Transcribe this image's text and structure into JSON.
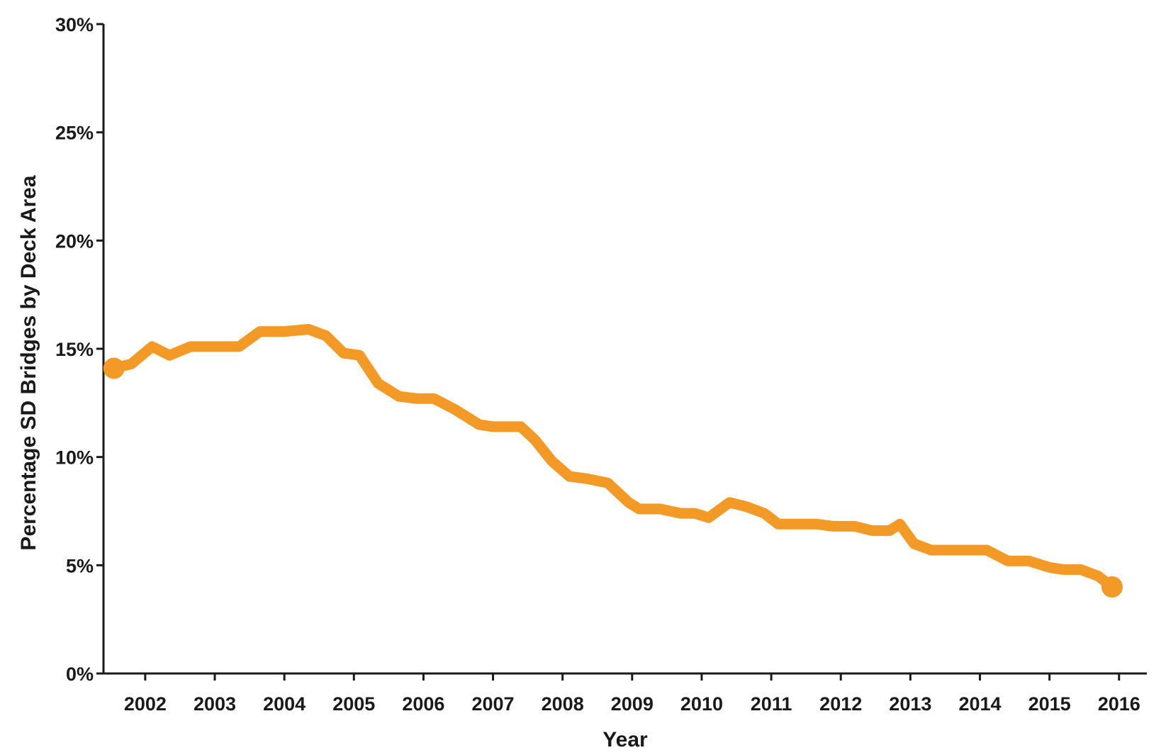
{
  "chart_data": {
    "type": "line",
    "title": "",
    "xlabel": "Year",
    "ylabel": "Percentage SD Bridges by Deck Area",
    "xlim": [
      2001.4,
      2016.4
    ],
    "ylim": [
      0,
      30
    ],
    "grid": false,
    "line_color": "#f39a26",
    "axis_color": "#1a1a1a",
    "x_ticks": [
      2002,
      2003,
      2004,
      2005,
      2006,
      2007,
      2008,
      2009,
      2010,
      2011,
      2012,
      2013,
      2014,
      2015,
      2016
    ],
    "x_tick_labels": [
      "2002",
      "2003",
      "2004",
      "2005",
      "2006",
      "2007",
      "2008",
      "2009",
      "2010",
      "2011",
      "2012",
      "2013",
      "2014",
      "2015",
      "2016"
    ],
    "y_ticks": [
      0,
      5,
      10,
      15,
      20,
      25,
      30
    ],
    "y_tick_labels": [
      "0%",
      "5%",
      "10%",
      "15%",
      "20%",
      "25%",
      "30%"
    ],
    "series": [
      {
        "x": [
          2001.55,
          2001.8,
          2002.1,
          2002.35,
          2002.65,
          2003.0,
          2003.35,
          2003.65,
          2004.0,
          2004.35,
          2004.6,
          2004.85,
          2005.08,
          2005.35,
          2005.65,
          2005.9,
          2006.15,
          2006.45,
          2006.8,
          2007.0,
          2007.4,
          2007.6,
          2007.85,
          2008.1,
          2008.35,
          2008.65,
          2008.95,
          2009.1,
          2009.4,
          2009.7,
          2009.9,
          2010.1,
          2010.4,
          2010.65,
          2010.9,
          2011.1,
          2011.35,
          2011.65,
          2011.9,
          2012.2,
          2012.45,
          2012.7,
          2012.85,
          2013.05,
          2013.3,
          2013.55,
          2013.8,
          2014.1,
          2014.4,
          2014.7,
          2015.0,
          2015.2,
          2015.45,
          2015.7,
          2015.9
        ],
        "values": [
          14.1,
          14.3,
          15.1,
          14.7,
          15.1,
          15.1,
          15.1,
          15.8,
          15.8,
          15.9,
          15.6,
          14.8,
          14.7,
          13.4,
          12.8,
          12.7,
          12.7,
          12.2,
          11.5,
          11.4,
          11.4,
          10.8,
          9.8,
          9.1,
          9.0,
          8.8,
          7.9,
          7.6,
          7.6,
          7.4,
          7.4,
          7.2,
          7.9,
          7.7,
          7.4,
          6.9,
          6.9,
          6.9,
          6.8,
          6.8,
          6.6,
          6.6,
          6.9,
          6.0,
          5.7,
          5.7,
          5.7,
          5.7,
          5.2,
          5.2,
          4.9,
          4.8,
          4.8,
          4.5,
          4.0
        ]
      }
    ]
  }
}
